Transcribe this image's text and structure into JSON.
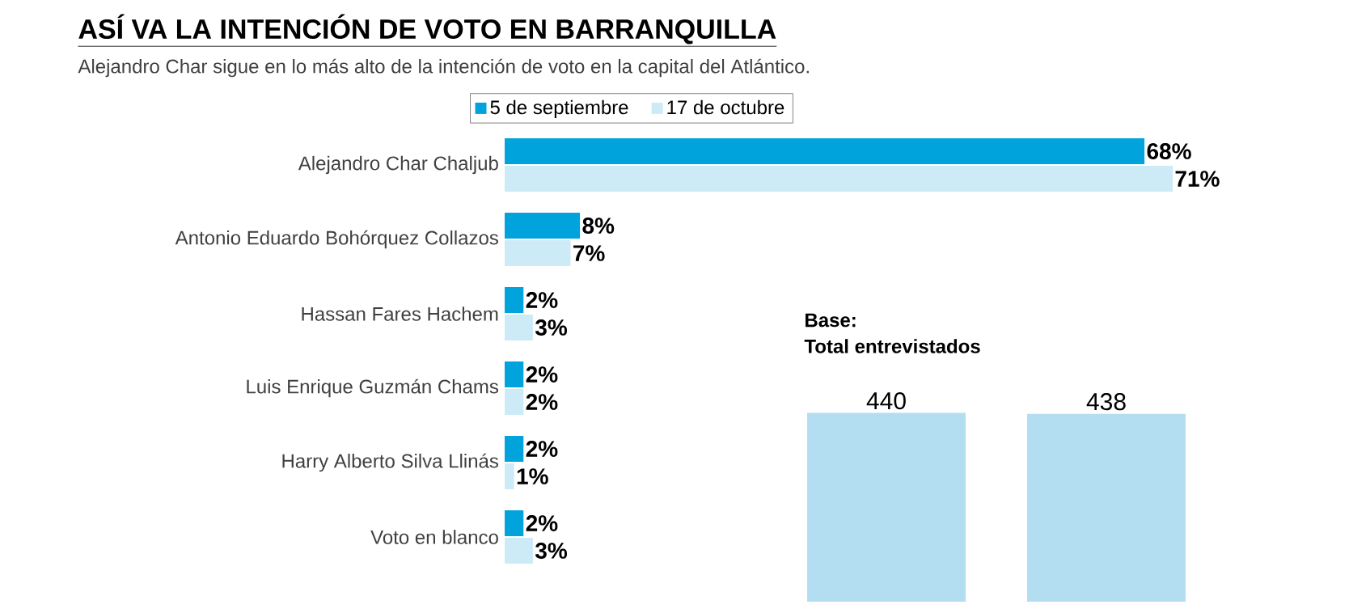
{
  "chart_data": [
    {
      "type": "bar",
      "orientation": "horizontal",
      "title": "ASÍ VA LA INTENCIÓN DE VOTO EN BARRANQUILLA",
      "subtitle": "Alejandro Char sigue en lo más alto de la intención de voto en la capital del Atlántico.",
      "legend": "top",
      "categories": [
        "Alejandro Char Chaljub",
        "Antonio Eduardo Bohórquez Collazos",
        "Hassan Fares Hachem",
        "Luis Enrique Guzmán Chams",
        "Harry Alberto Silva Llinás",
        "Voto en blanco"
      ],
      "series": [
        {
          "name": "5 de septiembre",
          "color": "#00a3dc",
          "values": [
            68,
            8,
            2,
            2,
            2,
            2
          ],
          "value_labels": [
            "68%",
            "8%",
            "2%",
            "2%",
            "2%",
            "2%"
          ]
        },
        {
          "name": "17 de octubre",
          "color": "#cdeaf7",
          "values": [
            71,
            7,
            3,
            2,
            1,
            3
          ],
          "value_labels": [
            "71%",
            "7%",
            "3%",
            "2%",
            "1%",
            "3%"
          ]
        }
      ]
    },
    {
      "type": "bar",
      "title": "Base:",
      "subtitle": "Total entrevistados",
      "categories": [
        null,
        null
      ],
      "values": [
        440,
        438
      ],
      "color": "#b3def2",
      "data_labels": true
    }
  ]
}
